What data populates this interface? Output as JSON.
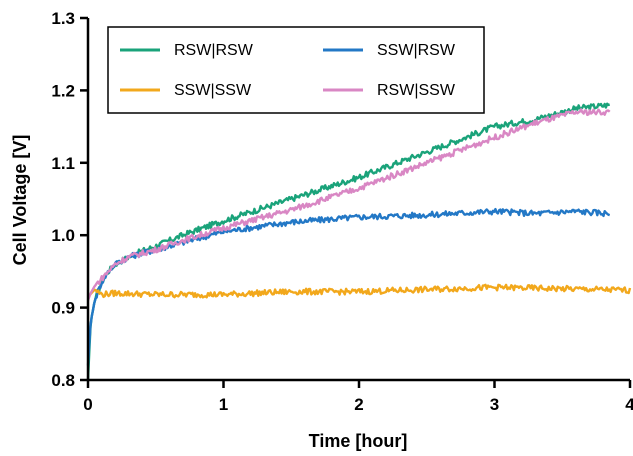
{
  "chart_data": {
    "type": "line",
    "title": "",
    "xlabel": "Time [hour]",
    "ylabel": "Cell Voltage [V]",
    "xlim": [
      0,
      4
    ],
    "ylim": [
      0.8,
      1.3
    ],
    "xticks": [
      0,
      1,
      2,
      3,
      4
    ],
    "yticks": [
      0.8,
      0.9,
      1.0,
      1.1,
      1.2,
      1.3
    ],
    "xtick_labels": [
      "0",
      "1",
      "2",
      "3",
      "4"
    ],
    "ytick_labels": [
      "0.8",
      "0.9",
      "1.0",
      "1.1",
      "1.2",
      "1.3"
    ],
    "grid": false,
    "legend_position": "top-left",
    "legend_columns": 2,
    "series": [
      {
        "name": "RSW|RSW",
        "color": "#1aa37a",
        "x": [
          0,
          0.02,
          0.05,
          0.1,
          0.15,
          0.2,
          0.3,
          0.4,
          0.5,
          0.7,
          1.0,
          1.5,
          2.0,
          2.5,
          3.0,
          3.3,
          3.6,
          3.85
        ],
        "y": [
          0.8,
          0.88,
          0.91,
          0.935,
          0.95,
          0.96,
          0.97,
          0.978,
          0.985,
          1.0,
          1.02,
          1.05,
          1.08,
          1.115,
          1.15,
          1.16,
          1.175,
          1.18
        ]
      },
      {
        "name": "SSW|RSW",
        "color": "#2378c6",
        "x": [
          0,
          0.02,
          0.05,
          0.1,
          0.15,
          0.2,
          0.3,
          0.4,
          0.5,
          0.7,
          1.0,
          1.5,
          2.0,
          2.5,
          3.0,
          3.3,
          3.6,
          3.85
        ],
        "y": [
          0.82,
          0.88,
          0.91,
          0.935,
          0.95,
          0.96,
          0.97,
          0.975,
          0.98,
          0.99,
          1.005,
          1.018,
          1.025,
          1.028,
          1.033,
          1.03,
          1.033,
          1.03
        ]
      },
      {
        "name": "SSW|SSW",
        "color": "#f2a81c",
        "x": [
          0,
          0.05,
          0.1,
          0.2,
          0.5,
          1.0,
          1.5,
          2.0,
          2.5,
          3.0,
          3.5,
          4.0
        ],
        "y": [
          0.915,
          0.925,
          0.918,
          0.92,
          0.918,
          0.918,
          0.922,
          0.922,
          0.925,
          0.928,
          0.926,
          0.924
        ]
      },
      {
        "name": "RSW|SSW",
        "color": "#d987c4",
        "x": [
          0,
          0.02,
          0.05,
          0.1,
          0.15,
          0.2,
          0.3,
          0.4,
          0.5,
          0.7,
          1.0,
          1.5,
          2.0,
          2.5,
          3.0,
          3.3,
          3.6,
          3.85
        ],
        "y": [
          0.91,
          0.92,
          0.93,
          0.94,
          0.95,
          0.96,
          0.97,
          0.975,
          0.98,
          0.993,
          1.01,
          1.035,
          1.065,
          1.1,
          1.135,
          1.155,
          1.17,
          1.17
        ]
      }
    ]
  }
}
